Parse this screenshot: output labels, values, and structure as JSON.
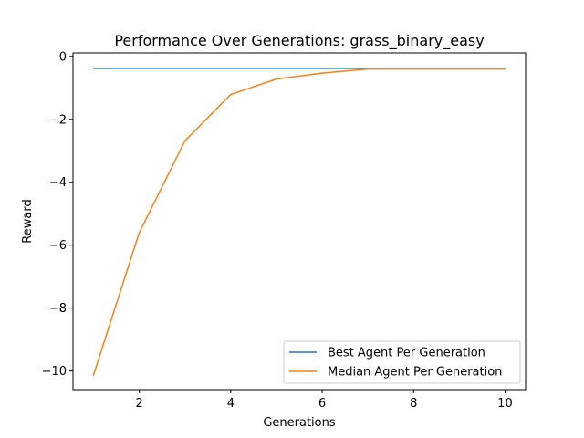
{
  "chart_data": {
    "type": "line",
    "title": "Performance Over Generations: grass_binary_easy",
    "xlabel": "Generations",
    "ylabel": "Reward",
    "xlim": [
      0.55,
      10.45
    ],
    "ylim": [
      -10.59,
      0.11
    ],
    "xticks": [
      2,
      4,
      6,
      8,
      10
    ],
    "xtick_labels": [
      "2",
      "4",
      "6",
      "8",
      "10"
    ],
    "yticks": [
      0,
      -2,
      -4,
      -6,
      -8,
      -10
    ],
    "ytick_labels": [
      "0",
      "−2",
      "−4",
      "−6",
      "−8",
      "−10"
    ],
    "grid": false,
    "legend_position": "bottom-right",
    "x": [
      1,
      2,
      3,
      4,
      5,
      6,
      7,
      8,
      9,
      10
    ],
    "series": [
      {
        "name": "Best Agent Per Generation",
        "color": "#1f77b4",
        "values": [
          -0.38,
          -0.38,
          -0.38,
          -0.38,
          -0.38,
          -0.38,
          -0.38,
          -0.38,
          -0.38,
          -0.38
        ]
      },
      {
        "name": "Median Agent Per Generation",
        "color": "#ff7f0e",
        "values": [
          -10.12,
          -5.6,
          -2.68,
          -1.21,
          -0.72,
          -0.53,
          -0.4,
          -0.4,
          -0.4,
          -0.4
        ]
      }
    ]
  }
}
